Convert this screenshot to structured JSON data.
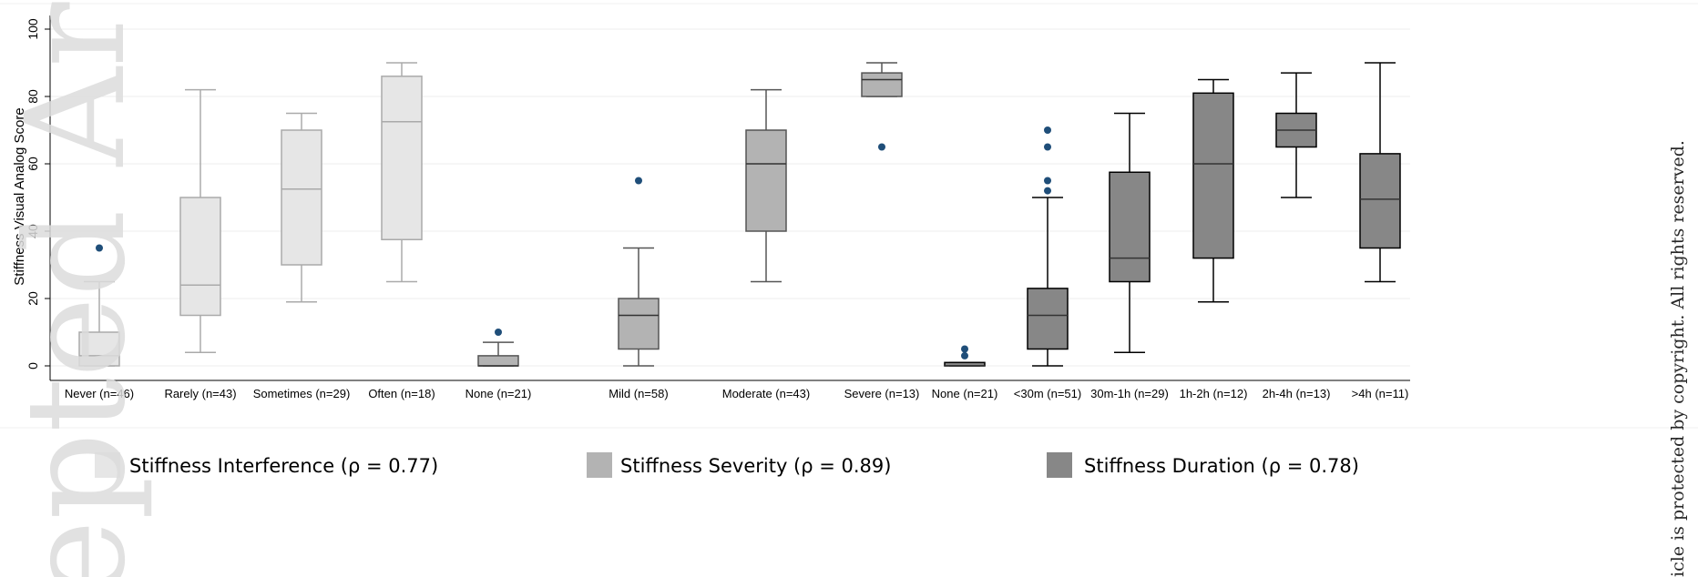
{
  "chart_data": {
    "type": "box",
    "ylabel": "Stiffness Visual Analog Score",
    "ylim": [
      -4,
      104
    ],
    "yticks": [
      0,
      20,
      40,
      60,
      80,
      100
    ],
    "grid": true,
    "legend_position": "bottom",
    "groups": [
      {
        "name": "Stiffness Interference (ρ = 0.77)",
        "color": "#e6e6e6",
        "boxes": [
          {
            "label": "Never (n=46)",
            "min": 0,
            "q1": 0,
            "median": 3,
            "q3": 10,
            "max": 25,
            "outliers": [
              35
            ]
          },
          {
            "label": "Rarely (n=43)",
            "min": 4,
            "q1": 15,
            "median": 24,
            "q3": 50,
            "max": 82,
            "outliers": []
          },
          {
            "label": "Sometimes (n=29)",
            "min": 19,
            "q1": 30,
            "median": 52.5,
            "q3": 70,
            "max": 75,
            "outliers": []
          },
          {
            "label": "Often (n=18)",
            "min": 25,
            "q1": 37.5,
            "median": 72.5,
            "q3": 86,
            "max": 90,
            "outliers": []
          }
        ]
      },
      {
        "name": "Stiffness Severity (ρ = 0.89)",
        "color": "#b3b3b3",
        "boxes": [
          {
            "label": "None (n=21)",
            "min": 0,
            "q1": 0,
            "median": 0,
            "q3": 3,
            "max": 7,
            "outliers": [
              10
            ]
          },
          {
            "label": "Mild (n=58)",
            "min": 0,
            "q1": 5,
            "median": 15,
            "q3": 20,
            "max": 35,
            "outliers": [
              55
            ]
          },
          {
            "label": "Moderate (n=43)",
            "min": 25,
            "q1": 40,
            "median": 60,
            "q3": 70,
            "max": 82,
            "outliers": []
          },
          {
            "label": "Severe (n=13)",
            "min": 80,
            "q1": 80,
            "median": 85,
            "q3": 87,
            "max": 90,
            "outliers": [
              65
            ]
          }
        ]
      },
      {
        "name": "Stiffness Duration (ρ = 0.78)",
        "color": "#878787",
        "boxes": [
          {
            "label": "None (n=21)",
            "min": 0,
            "q1": 0,
            "median": 0,
            "q3": 1,
            "max": 1,
            "outliers": [
              3,
              5
            ]
          },
          {
            "label": "<30m (n=51)",
            "min": 0,
            "q1": 5,
            "median": 15,
            "q3": 23,
            "max": 50,
            "outliers": [
              52,
              55,
              65,
              70
            ]
          },
          {
            "label": "30m-1h (n=29)",
            "min": 4,
            "q1": 25,
            "median": 32,
            "q3": 57.5,
            "max": 75,
            "outliers": []
          },
          {
            "label": "1h-2h (n=12)",
            "min": 19,
            "q1": 32,
            "median": 60,
            "q3": 81,
            "max": 85,
            "outliers": []
          },
          {
            "label": "2h-4h (n=13)",
            "min": 50,
            "q1": 65,
            "median": 70,
            "q3": 75,
            "max": 87,
            "outliers": []
          },
          {
            "label": ">4h (n=11)",
            "min": 25,
            "q1": 35,
            "median": 49.5,
            "q3": 63,
            "max": 90,
            "outliers": []
          }
        ]
      }
    ]
  },
  "watermark": {
    "text": "epted Art",
    "copyright": "icle is protected by copyright. All rights reserved."
  }
}
